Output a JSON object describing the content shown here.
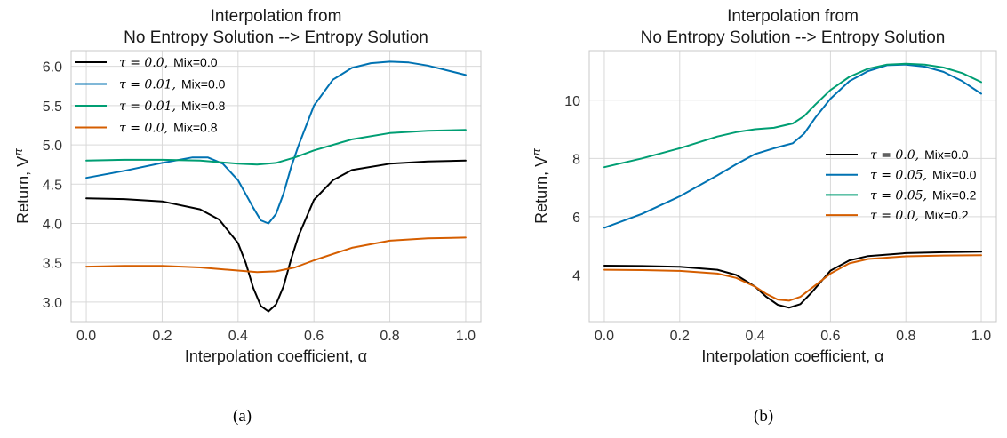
{
  "chart_data": [
    {
      "type": "line",
      "title_lines": [
        "Interpolation from",
        "No Entropy Solution --> Entropy Solution"
      ],
      "xlabel": "Interpolation coefficient, α",
      "ylabel": "Return, V",
      "ylabel_sup": "π",
      "xlim": [
        -0.04,
        1.04
      ],
      "ylim": [
        2.75,
        6.2
      ],
      "xticks": [
        0.0,
        0.2,
        0.4,
        0.6,
        0.8,
        1.0
      ],
      "xtick_labels": [
        "0.0",
        "0.2",
        "0.4",
        "0.6",
        "0.8",
        "1.0"
      ],
      "yticks": [
        3.0,
        3.5,
        4.0,
        4.5,
        5.0,
        5.5,
        6.0
      ],
      "ytick_labels": [
        "3.0",
        "3.5",
        "4.0",
        "4.5",
        "5.0",
        "5.5",
        "6.0"
      ],
      "grid": true,
      "legend_loc": "top-left",
      "series": [
        {
          "tau": "τ = 0.0,",
          "mix": "Mix=0.0",
          "color": "#000000",
          "x": [
            0.0,
            0.1,
            0.2,
            0.3,
            0.35,
            0.4,
            0.42,
            0.44,
            0.46,
            0.48,
            0.5,
            0.52,
            0.54,
            0.56,
            0.6,
            0.65,
            0.7,
            0.8,
            0.9,
            1.0
          ],
          "y": [
            4.32,
            4.31,
            4.28,
            4.18,
            4.05,
            3.75,
            3.5,
            3.18,
            2.95,
            2.88,
            2.97,
            3.2,
            3.55,
            3.85,
            4.3,
            4.55,
            4.68,
            4.76,
            4.79,
            4.8
          ]
        },
        {
          "tau": "τ = 0.01,",
          "mix": "Mix=0.0",
          "color": "#0072b2",
          "x": [
            0.0,
            0.1,
            0.2,
            0.28,
            0.32,
            0.36,
            0.4,
            0.44,
            0.46,
            0.48,
            0.5,
            0.52,
            0.54,
            0.56,
            0.6,
            0.65,
            0.7,
            0.75,
            0.8,
            0.85,
            0.9,
            1.0
          ],
          "y": [
            4.58,
            4.67,
            4.77,
            4.84,
            4.84,
            4.76,
            4.55,
            4.2,
            4.04,
            4.0,
            4.12,
            4.38,
            4.72,
            5.0,
            5.5,
            5.83,
            5.98,
            6.04,
            6.06,
            6.05,
            6.01,
            5.89
          ]
        },
        {
          "tau": "τ = 0.01,",
          "mix": "Mix=0.8",
          "color": "#009e73",
          "x": [
            0.0,
            0.1,
            0.2,
            0.3,
            0.4,
            0.45,
            0.5,
            0.55,
            0.6,
            0.7,
            0.8,
            0.9,
            1.0
          ],
          "y": [
            4.8,
            4.81,
            4.81,
            4.8,
            4.76,
            4.75,
            4.77,
            4.84,
            4.93,
            5.07,
            5.15,
            5.18,
            5.19
          ]
        },
        {
          "tau": "τ = 0.0,",
          "mix": "Mix=0.8",
          "color": "#d55e00",
          "x": [
            0.0,
            0.1,
            0.2,
            0.3,
            0.4,
            0.45,
            0.5,
            0.55,
            0.6,
            0.7,
            0.8,
            0.9,
            1.0
          ],
          "y": [
            3.45,
            3.46,
            3.46,
            3.44,
            3.4,
            3.38,
            3.39,
            3.44,
            3.53,
            3.69,
            3.78,
            3.81,
            3.82
          ]
        }
      ],
      "caption": "(a)"
    },
    {
      "type": "line",
      "title_lines": [
        "Interpolation from",
        "No Entropy Solution --> Entropy Solution"
      ],
      "xlabel": "Interpolation coefficient, α",
      "ylabel": "Return, V",
      "ylabel_sup": "π",
      "xlim": [
        -0.04,
        1.04
      ],
      "ylim": [
        2.4,
        11.7
      ],
      "xticks": [
        0.0,
        0.2,
        0.4,
        0.6,
        0.8,
        1.0
      ],
      "xtick_labels": [
        "0.0",
        "0.2",
        "0.4",
        "0.6",
        "0.8",
        "1.0"
      ],
      "yticks": [
        4,
        6,
        8,
        10
      ],
      "ytick_labels": [
        "4",
        "6",
        "8",
        "10"
      ],
      "grid": true,
      "legend_loc": "center-right",
      "series": [
        {
          "tau": "τ = 0.0,",
          "mix": "Mix=0.0",
          "color": "#000000",
          "x": [
            0.0,
            0.1,
            0.2,
            0.3,
            0.35,
            0.4,
            0.43,
            0.46,
            0.49,
            0.52,
            0.55,
            0.6,
            0.65,
            0.7,
            0.8,
            0.9,
            1.0
          ],
          "y": [
            4.32,
            4.31,
            4.28,
            4.18,
            4.0,
            3.6,
            3.25,
            2.98,
            2.88,
            3.0,
            3.4,
            4.15,
            4.5,
            4.65,
            4.75,
            4.78,
            4.8
          ]
        },
        {
          "tau": "τ = 0.05,",
          "mix": "Mix=0.0",
          "color": "#0072b2",
          "x": [
            0.0,
            0.1,
            0.2,
            0.3,
            0.35,
            0.4,
            0.45,
            0.5,
            0.53,
            0.56,
            0.6,
            0.65,
            0.7,
            0.75,
            0.8,
            0.85,
            0.9,
            0.95,
            1.0
          ],
          "y": [
            5.62,
            6.1,
            6.7,
            7.42,
            7.8,
            8.15,
            8.35,
            8.52,
            8.85,
            9.4,
            10.05,
            10.65,
            11.0,
            11.2,
            11.22,
            11.15,
            10.97,
            10.65,
            10.22
          ]
        },
        {
          "tau": "τ = 0.05,",
          "mix": "Mix=0.2",
          "color": "#009e73",
          "x": [
            0.0,
            0.1,
            0.2,
            0.3,
            0.35,
            0.4,
            0.45,
            0.5,
            0.53,
            0.56,
            0.6,
            0.65,
            0.7,
            0.75,
            0.8,
            0.85,
            0.9,
            0.95,
            1.0
          ],
          "y": [
            7.7,
            8.0,
            8.35,
            8.75,
            8.9,
            9.0,
            9.05,
            9.2,
            9.45,
            9.85,
            10.35,
            10.8,
            11.08,
            11.22,
            11.25,
            11.22,
            11.12,
            10.93,
            10.62
          ]
        },
        {
          "tau": "τ = 0.0,",
          "mix": "Mix=0.2",
          "color": "#d55e00",
          "x": [
            0.0,
            0.1,
            0.2,
            0.3,
            0.35,
            0.4,
            0.43,
            0.46,
            0.49,
            0.52,
            0.55,
            0.6,
            0.65,
            0.7,
            0.8,
            0.9,
            1.0
          ],
          "y": [
            4.18,
            4.17,
            4.14,
            4.05,
            3.9,
            3.6,
            3.35,
            3.16,
            3.12,
            3.25,
            3.55,
            4.05,
            4.4,
            4.55,
            4.64,
            4.67,
            4.68
          ]
        }
      ],
      "caption": "(b)"
    }
  ]
}
